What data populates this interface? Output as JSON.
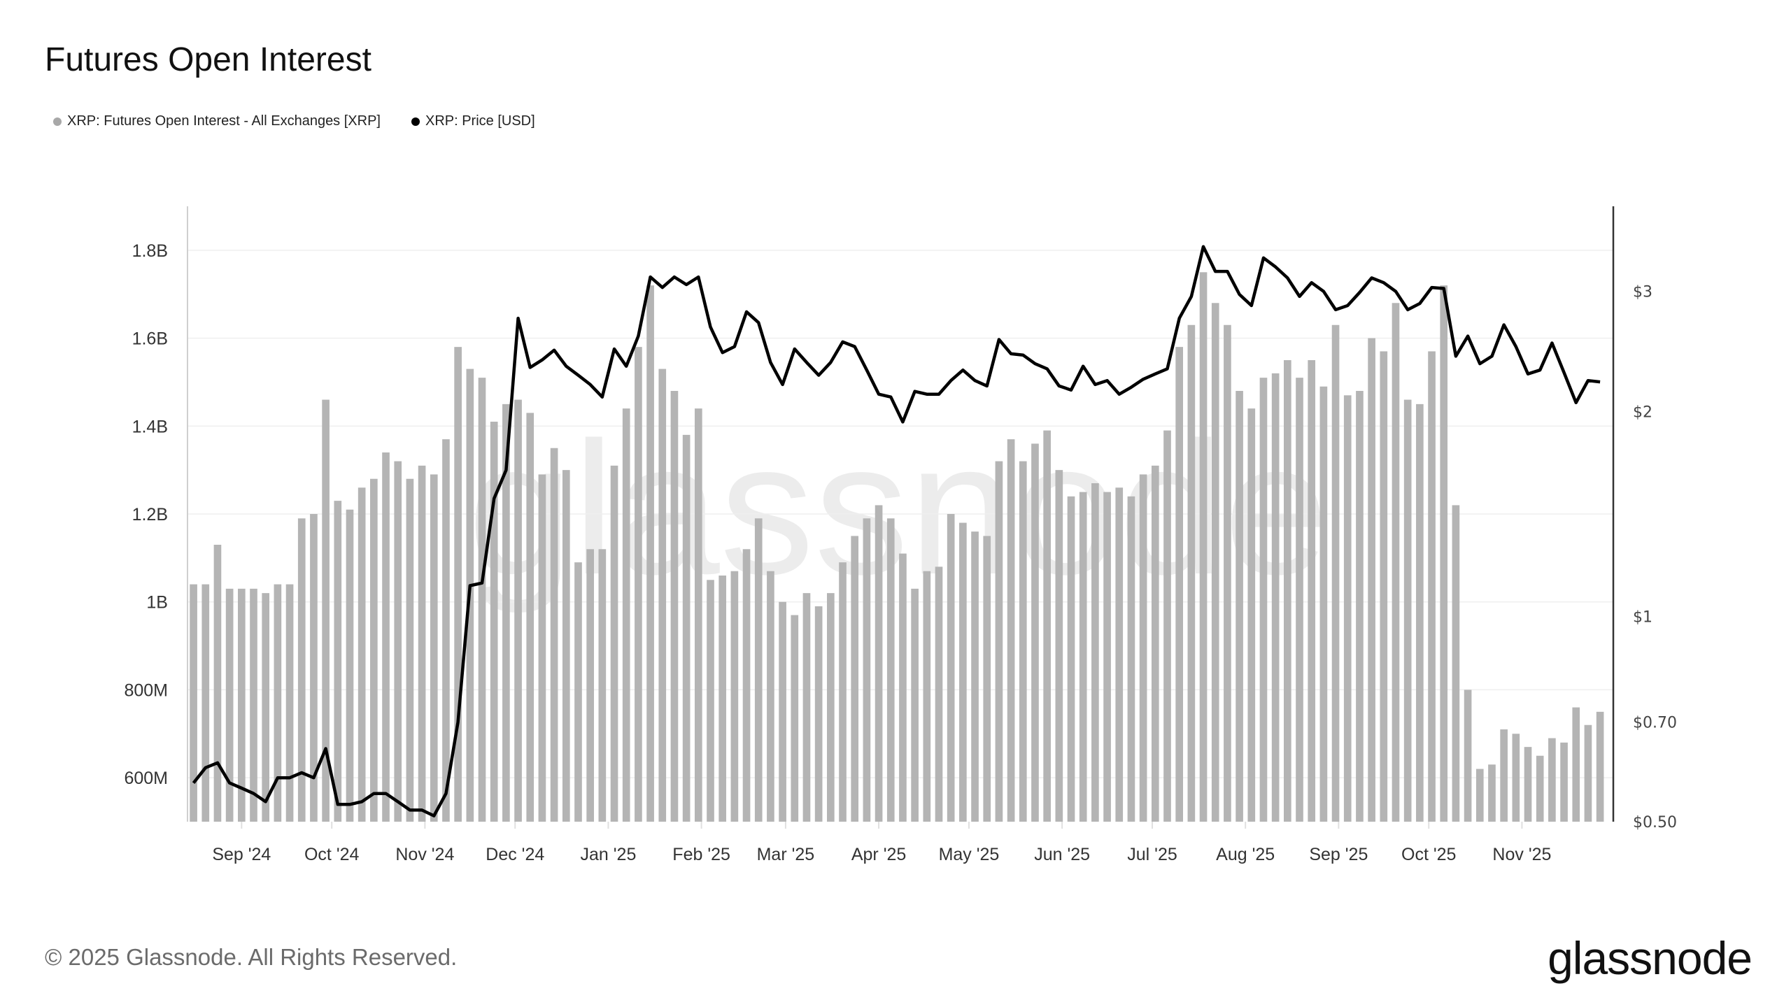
{
  "title": "Futures Open Interest",
  "legend": [
    {
      "label": "XRP: Futures Open Interest - All Exchanges [XRP]",
      "color": "#a8a8a8"
    },
    {
      "label": "XRP: Price [USD]",
      "color": "#000000"
    }
  ],
  "footer": "© 2025 Glassnode. All Rights Reserved.",
  "logo": "glassnode",
  "watermark": "glassnode",
  "chart_data": {
    "type": "bar+line",
    "x_range": [
      "2024-08-14",
      "2025-11-30"
    ],
    "grid": true,
    "legend_position": "top-left",
    "x_ticks": [
      {
        "date": "2024-09-01",
        "label": "Sep '24"
      },
      {
        "date": "2024-10-01",
        "label": "Oct '24"
      },
      {
        "date": "2024-11-01",
        "label": "Nov '24"
      },
      {
        "date": "2024-12-01",
        "label": "Dec '24"
      },
      {
        "date": "2025-01-01",
        "label": "Jan '25"
      },
      {
        "date": "2025-02-01",
        "label": "Feb '25"
      },
      {
        "date": "2025-03-01",
        "label": "Mar '25"
      },
      {
        "date": "2025-04-01",
        "label": "Apr '25"
      },
      {
        "date": "2025-05-01",
        "label": "May '25"
      },
      {
        "date": "2025-06-01",
        "label": "Jun '25"
      },
      {
        "date": "2025-07-01",
        "label": "Jul '25"
      },
      {
        "date": "2025-08-01",
        "label": "Aug '25"
      },
      {
        "date": "2025-09-01",
        "label": "Sep '25"
      },
      {
        "date": "2025-10-01",
        "label": "Oct '25"
      },
      {
        "date": "2025-11-01",
        "label": "Nov '25"
      }
    ],
    "y_left": {
      "scale": "linear",
      "range": [
        500000000,
        1900000000
      ],
      "ticks": [
        {
          "value": 600000000,
          "label": "600M"
        },
        {
          "value": 800000000,
          "label": "800M"
        },
        {
          "value": 1000000000,
          "label": "1B"
        },
        {
          "value": 1200000000,
          "label": "1.2B"
        },
        {
          "value": 1400000000,
          "label": "1.4B"
        },
        {
          "value": 1600000000,
          "label": "1.6B"
        },
        {
          "value": 1800000000,
          "label": "1.8B"
        }
      ]
    },
    "y_right": {
      "scale": "log",
      "range": [
        0.5,
        4.0
      ],
      "ticks": [
        {
          "value": 0.5,
          "label": "$0.50"
        },
        {
          "value": 0.7,
          "label": "$0.70"
        },
        {
          "value": 1,
          "label": "$1"
        },
        {
          "value": 2,
          "label": "$2"
        },
        {
          "value": 3,
          "label": "$3"
        }
      ]
    },
    "dates": [
      "2024-08-16",
      "2024-08-20",
      "2024-08-24",
      "2024-08-28",
      "2024-09-01",
      "2024-09-05",
      "2024-09-09",
      "2024-09-13",
      "2024-09-17",
      "2024-09-21",
      "2024-09-25",
      "2024-09-29",
      "2024-10-03",
      "2024-10-07",
      "2024-10-11",
      "2024-10-15",
      "2024-10-19",
      "2024-10-23",
      "2024-10-27",
      "2024-10-31",
      "2024-11-04",
      "2024-11-08",
      "2024-11-12",
      "2024-11-16",
      "2024-11-20",
      "2024-11-24",
      "2024-11-28",
      "2024-12-02",
      "2024-12-06",
      "2024-12-10",
      "2024-12-14",
      "2024-12-18",
      "2024-12-22",
      "2024-12-26",
      "2024-12-30",
      "2025-01-03",
      "2025-01-07",
      "2025-01-11",
      "2025-01-15",
      "2025-01-19",
      "2025-01-23",
      "2025-01-27",
      "2025-01-31",
      "2025-02-04",
      "2025-02-08",
      "2025-02-12",
      "2025-02-16",
      "2025-02-20",
      "2025-02-24",
      "2025-02-28",
      "2025-03-04",
      "2025-03-08",
      "2025-03-12",
      "2025-03-16",
      "2025-03-20",
      "2025-03-24",
      "2025-03-28",
      "2025-04-01",
      "2025-04-05",
      "2025-04-09",
      "2025-04-13",
      "2025-04-17",
      "2025-04-21",
      "2025-04-25",
      "2025-04-29",
      "2025-05-03",
      "2025-05-07",
      "2025-05-11",
      "2025-05-15",
      "2025-05-19",
      "2025-05-23",
      "2025-05-27",
      "2025-05-31",
      "2025-06-04",
      "2025-06-08",
      "2025-06-12",
      "2025-06-16",
      "2025-06-20",
      "2025-06-24",
      "2025-06-28",
      "2025-07-02",
      "2025-07-06",
      "2025-07-10",
      "2025-07-14",
      "2025-07-18",
      "2025-07-22",
      "2025-07-26",
      "2025-07-30",
      "2025-08-03",
      "2025-08-07",
      "2025-08-11",
      "2025-08-15",
      "2025-08-19",
      "2025-08-23",
      "2025-08-27",
      "2025-08-31",
      "2025-09-04",
      "2025-09-08",
      "2025-09-12",
      "2025-09-16",
      "2025-09-20",
      "2025-09-24",
      "2025-09-28",
      "2025-10-02",
      "2025-10-06",
      "2025-10-10",
      "2025-10-14",
      "2025-10-18",
      "2025-10-22",
      "2025-10-26",
      "2025-10-30",
      "2025-11-03",
      "2025-11-07",
      "2025-11-11",
      "2025-11-15",
      "2025-11-19",
      "2025-11-23",
      "2025-11-27"
    ],
    "series": [
      {
        "name": "XRP: Futures Open Interest - All Exchanges [XRP]",
        "type": "bar",
        "axis": "left",
        "color": "#b4b4b4",
        "values": [
          1040000000.0,
          1040000000.0,
          1130000000.0,
          1030000000.0,
          1030000000.0,
          1030000000.0,
          1020000000.0,
          1040000000.0,
          1040000000.0,
          1190000000.0,
          1200000000.0,
          1460000000.0,
          1230000000.0,
          1210000000.0,
          1260000000.0,
          1280000000.0,
          1340000000.0,
          1320000000.0,
          1280000000.0,
          1310000000.0,
          1290000000.0,
          1370000000.0,
          1580000000.0,
          1530000000.0,
          1510000000.0,
          1410000000.0,
          1450000000.0,
          1460000000.0,
          1430000000.0,
          1290000000.0,
          1350000000.0,
          1300000000.0,
          1090000000.0,
          1120000000.0,
          1120000000.0,
          1310000000.0,
          1440000000.0,
          1580000000.0,
          1720000000.0,
          1530000000.0,
          1480000000.0,
          1380000000.0,
          1440000000.0,
          1050000000.0,
          1060000000.0,
          1070000000.0,
          1120000000.0,
          1190000000.0,
          1070000000.0,
          1000000000.0,
          970000000.0,
          1020000000.0,
          990000000.0,
          1020000000.0,
          1090000000.0,
          1150000000.0,
          1190000000.0,
          1220000000.0,
          1190000000.0,
          1110000000.0,
          1030000000.0,
          1070000000.0,
          1080000000.0,
          1200000000.0,
          1180000000.0,
          1160000000.0,
          1150000000.0,
          1320000000.0,
          1370000000.0,
          1320000000.0,
          1360000000.0,
          1390000000.0,
          1300000000.0,
          1240000000.0,
          1250000000.0,
          1270000000.0,
          1250000000.0,
          1260000000.0,
          1240000000.0,
          1290000000.0,
          1310000000.0,
          1390000000.0,
          1580000000.0,
          1630000000.0,
          1750000000.0,
          1680000000.0,
          1630000000.0,
          1480000000.0,
          1440000000.0,
          1510000000.0,
          1520000000.0,
          1550000000.0,
          1510000000.0,
          1550000000.0,
          1490000000.0,
          1630000000.0,
          1470000000.0,
          1480000000.0,
          1600000000.0,
          1570000000.0,
          1680000000.0,
          1460000000.0,
          1450000000.0,
          1570000000.0,
          1720000000.0,
          1220000000.0,
          800000000.0,
          620000000.0,
          630000000.0,
          710000000.0,
          700000000.0,
          670000000.0,
          650000000.0,
          690000000.0,
          680000000.0,
          760000000.0,
          720000000.0,
          750000000.0
        ]
      },
      {
        "name": "XRP: Price [USD]",
        "type": "line",
        "axis": "right",
        "color": "#000000",
        "values": [
          0.57,
          0.6,
          0.61,
          0.57,
          0.56,
          0.55,
          0.535,
          0.58,
          0.58,
          0.59,
          0.58,
          0.64,
          0.53,
          0.53,
          0.535,
          0.55,
          0.55,
          0.535,
          0.52,
          0.52,
          0.51,
          0.55,
          0.7,
          1.11,
          1.12,
          1.49,
          1.64,
          2.74,
          2.32,
          2.38,
          2.46,
          2.33,
          2.26,
          2.19,
          2.1,
          2.47,
          2.33,
          2.58,
          3.15,
          3.04,
          3.15,
          3.07,
          3.15,
          2.66,
          2.44,
          2.49,
          2.8,
          2.7,
          2.36,
          2.19,
          2.47,
          2.36,
          2.26,
          2.36,
          2.53,
          2.49,
          2.3,
          2.12,
          2.1,
          1.93,
          2.14,
          2.12,
          2.12,
          2.22,
          2.3,
          2.22,
          2.18,
          2.55,
          2.43,
          2.42,
          2.35,
          2.31,
          2.18,
          2.15,
          2.33,
          2.19,
          2.22,
          2.12,
          2.17,
          2.23,
          2.27,
          2.31,
          2.74,
          2.95,
          3.49,
          3.21,
          3.21,
          2.97,
          2.86,
          3.36,
          3.26,
          3.14,
          2.95,
          3.09,
          3.0,
          2.82,
          2.86,
          2.99,
          3.14,
          3.09,
          3.0,
          2.82,
          2.88,
          3.04,
          3.03,
          2.41,
          2.58,
          2.35,
          2.41,
          2.68,
          2.49,
          2.27,
          2.3,
          2.52,
          2.28,
          2.06,
          2.22,
          2.21
        ]
      }
    ]
  }
}
